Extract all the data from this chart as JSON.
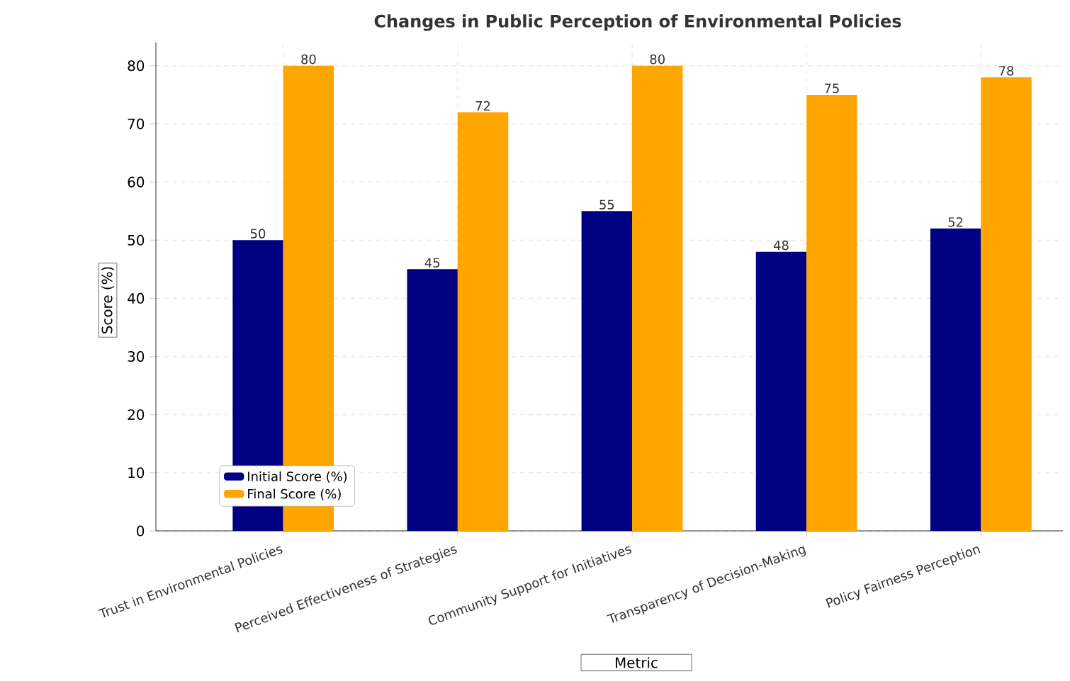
{
  "chart_data": {
    "type": "bar",
    "title": "Changes in Public Perception of Environmental Policies",
    "xlabel": "Metric",
    "ylabel": "Score (%)",
    "categories": [
      "Trust in Environmental Policies",
      "Perceived Effectiveness of Strategies",
      "Community Support for Initiatives",
      "Transparency of Decision-Making",
      "Policy Fairness Perception"
    ],
    "series": [
      {
        "name": "Initial Score (%)",
        "color": "#000080",
        "values": [
          50,
          45,
          55,
          48,
          52
        ]
      },
      {
        "name": "Final Score (%)",
        "color": "#ffa500",
        "values": [
          80,
          72,
          80,
          75,
          78
        ]
      }
    ],
    "ylim": [
      0,
      84
    ],
    "yticks": [
      0,
      10,
      20,
      30,
      40,
      50,
      60,
      70,
      80
    ],
    "grid": true,
    "legend": "bottom left",
    "data_labels": true
  }
}
